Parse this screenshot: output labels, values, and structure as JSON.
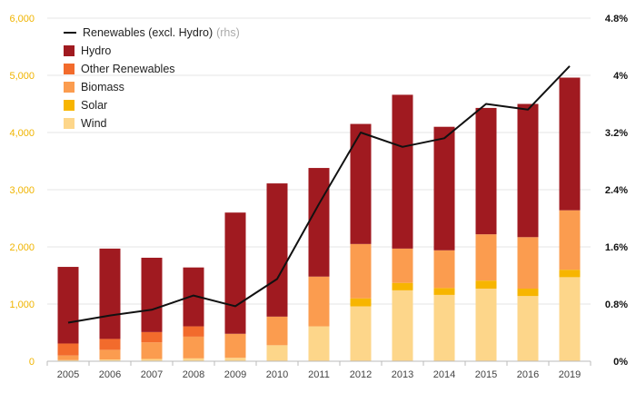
{
  "chart_data": {
    "type": "bar",
    "stacked": true,
    "categories": [
      "2005",
      "2006",
      "2007",
      "2008",
      "2009",
      "2010",
      "2011",
      "2012",
      "2013",
      "2014",
      "2015",
      "2016",
      "2019"
    ],
    "series": [
      {
        "name": "Wind",
        "color": "#fdd68a",
        "values": [
          20,
          30,
          40,
          50,
          60,
          280,
          610,
          960,
          1240,
          1160,
          1270,
          1140,
          1470
        ]
      },
      {
        "name": "Solar",
        "color": "#f7b500",
        "values": [
          0,
          0,
          0,
          0,
          0,
          0,
          0,
          140,
          130,
          120,
          140,
          130,
          130
        ]
      },
      {
        "name": "Biomass",
        "color": "#fb9c4f",
        "values": [
          80,
          170,
          290,
          380,
          420,
          500,
          870,
          950,
          600,
          660,
          810,
          900,
          1040
        ]
      },
      {
        "name": "Other Renewables",
        "color": "#f26b2c",
        "values": [
          210,
          190,
          180,
          180,
          0,
          0,
          0,
          0,
          0,
          0,
          0,
          0,
          0
        ]
      },
      {
        "name": "Hydro",
        "color": "#a01a20",
        "values": [
          1340,
          1580,
          1300,
          1030,
          2120,
          2330,
          1900,
          2100,
          2690,
          2160,
          2210,
          2330,
          2320
        ]
      }
    ],
    "line_series": {
      "name": "Renewables (excl. Hydro)",
      "name_suffix": "(rhs)",
      "color": "#111111",
      "values": [
        0.54,
        0.64,
        0.72,
        0.92,
        0.77,
        1.15,
        2.2,
        3.2,
        3.0,
        3.12,
        3.6,
        3.52,
        4.13
      ]
    },
    "yticks_left": [
      "0",
      "1,000",
      "2,000",
      "3,000",
      "4,000",
      "5,000",
      "6,000"
    ],
    "yticks_right": [
      "0%",
      "0.8%",
      "1.6%",
      "2.4%",
      "3.2%",
      "4%",
      "4.8%"
    ],
    "ylim_left": [
      0,
      6000
    ],
    "ylim_right": [
      0,
      4.8
    ],
    "grid": true,
    "legend_position": "top-left",
    "colors": {
      "axis_left_text": "#f0b400",
      "axis_right_text": "#111111",
      "grid": "#e6e6e6"
    }
  }
}
